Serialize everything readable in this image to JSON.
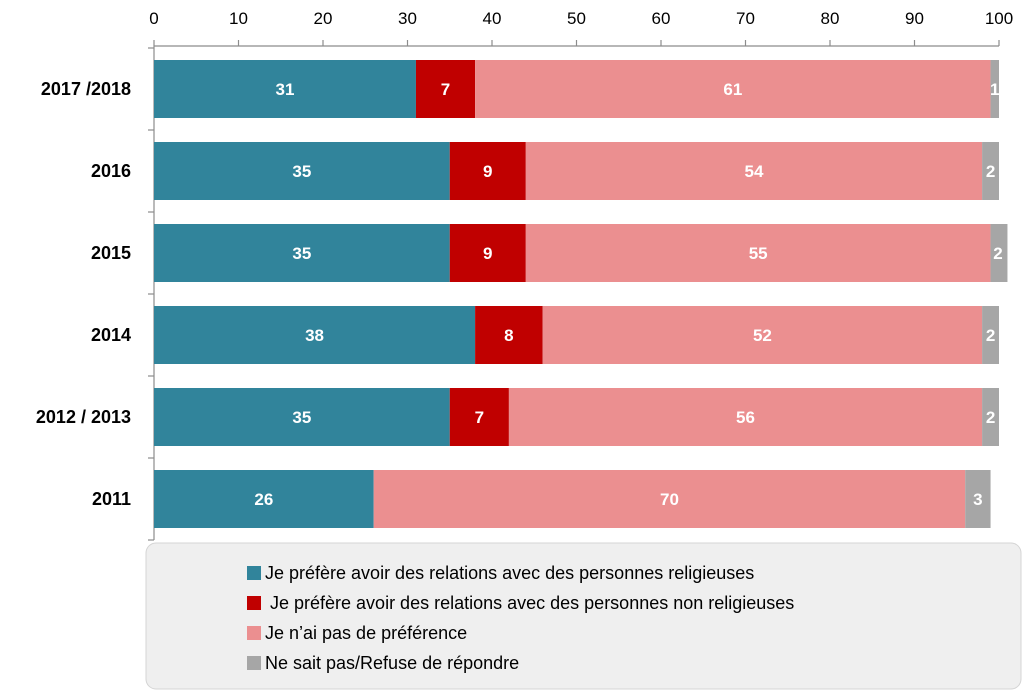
{
  "chart_data": {
    "type": "bar",
    "orientation": "horizontal",
    "stacked": true,
    "xlim": [
      0,
      100
    ],
    "x_ticks": [
      "0",
      "10",
      "20",
      "30",
      "40",
      "50",
      "60",
      "70",
      "80",
      "90",
      "100"
    ],
    "x_axis_position": "top",
    "grid": false,
    "legend_position": "bottom",
    "categories": [
      "2017 /2018",
      "2016",
      "2015",
      "2014",
      "2012 / 2013",
      "2011"
    ],
    "series": [
      {
        "name": "Je préfère avoir des relations avec des personnes religieuses",
        "color": "#31849b",
        "values": [
          31,
          35,
          35,
          38,
          35,
          26
        ]
      },
      {
        "name": " Je préfère avoir des relations avec des personnes non religieuses",
        "color": "#c00000",
        "values": [
          7,
          9,
          9,
          8,
          7,
          null
        ]
      },
      {
        "name": "Je n’ai pas de préférence",
        "color": "#eb8f90",
        "values": [
          61,
          54,
          55,
          52,
          56,
          70
        ]
      },
      {
        "name": "Ne sait pas/Refuse de répondre",
        "color": "#a6a6a6",
        "values": [
          1,
          2,
          2,
          2,
          2,
          3
        ]
      }
    ]
  }
}
